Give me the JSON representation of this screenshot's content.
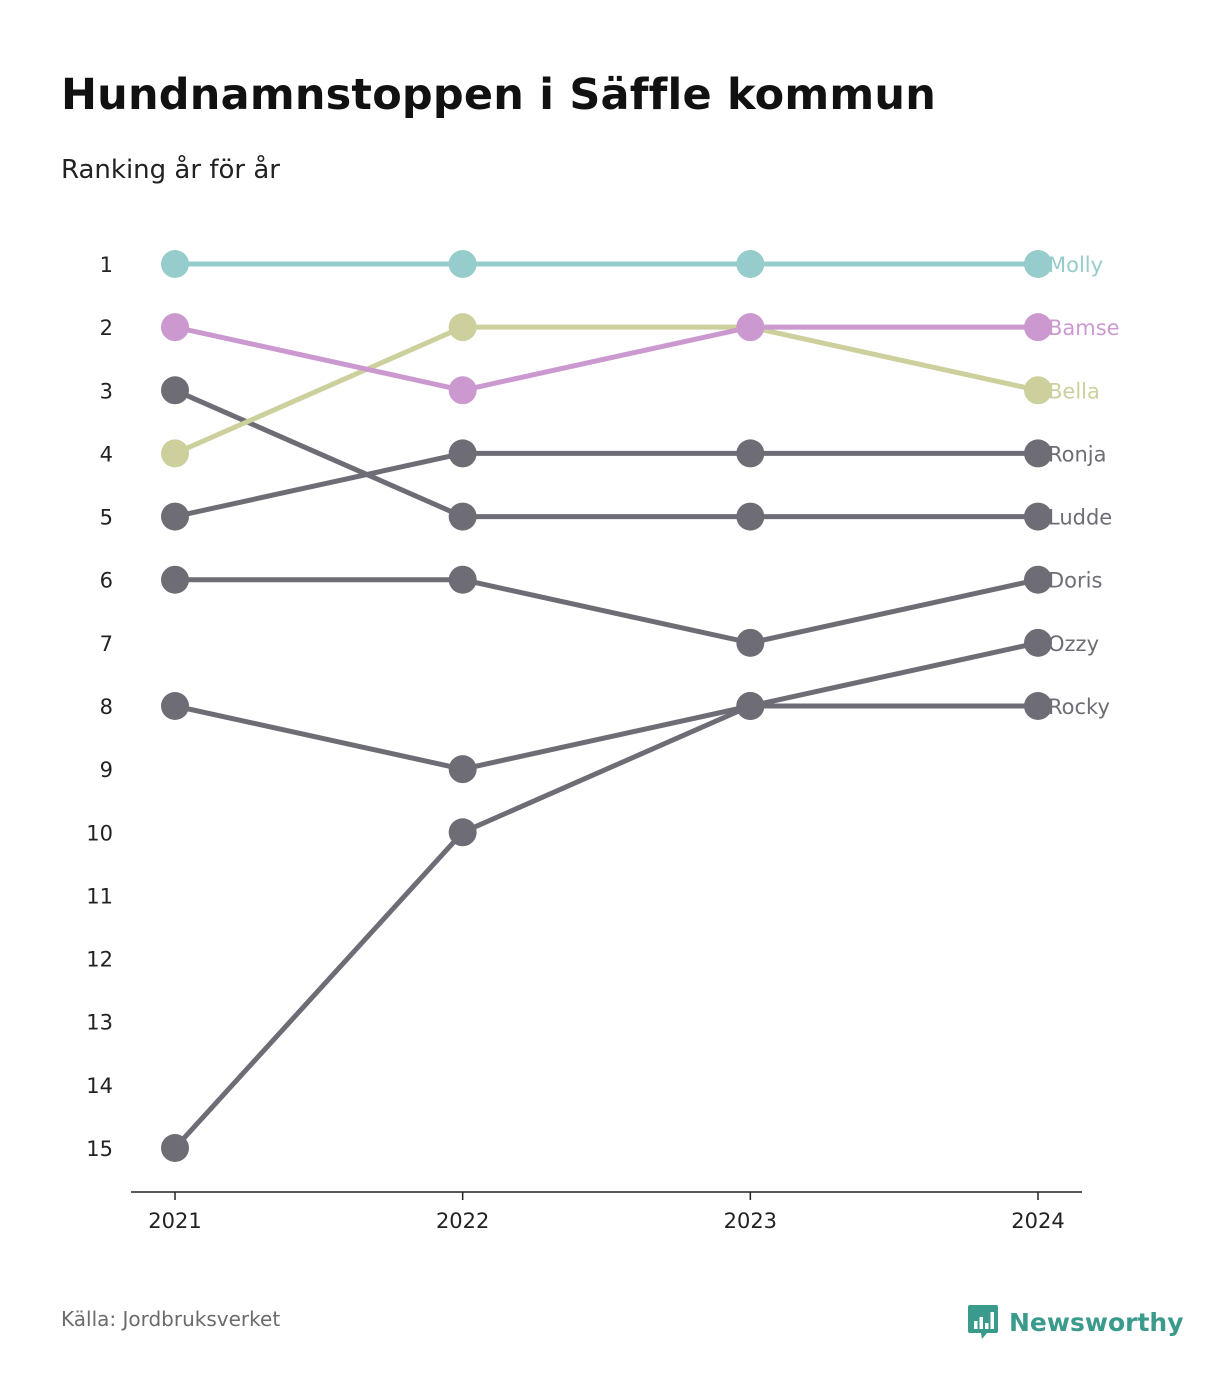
{
  "title": "Hundnamnstoppen i Säffle kommun",
  "subtitle": "Ranking år för år",
  "source": "Källa: Jordbruksverket",
  "brand": {
    "name": "Newsworthy",
    "icon": "newsworthy-logo-icon",
    "color": "#3a9a8c"
  },
  "chart_data": {
    "type": "line",
    "title": "Hundnamnstoppen i Säffle kommun",
    "subtitle": "Ranking år för år",
    "x": [
      "2021",
      "2022",
      "2023",
      "2024"
    ],
    "y_ticks": [
      "1",
      "2",
      "3",
      "4",
      "5",
      "6",
      "7",
      "8",
      "9",
      "10",
      "11",
      "12",
      "13",
      "14",
      "15"
    ],
    "ylim": [
      1,
      15
    ],
    "y_inverted": true,
    "grid": false,
    "legend": "direct labels at right end of lines",
    "series": [
      {
        "name": "Molly",
        "values": [
          1,
          1,
          1,
          1
        ],
        "color": "#96cccb"
      },
      {
        "name": "Bamse",
        "values": [
          2,
          3,
          2,
          2
        ],
        "color": "#cb99d0"
      },
      {
        "name": "Bella",
        "values": [
          4,
          2,
          2,
          3
        ],
        "color": "#cdcf9c"
      },
      {
        "name": "Ronja",
        "values": [
          5,
          4,
          4,
          4
        ],
        "color": "#6e6d75"
      },
      {
        "name": "Ludde",
        "values": [
          3,
          5,
          5,
          5
        ],
        "color": "#6e6d75"
      },
      {
        "name": "Doris",
        "values": [
          6,
          6,
          7,
          6
        ],
        "color": "#6e6d75"
      },
      {
        "name": "Ozzy",
        "values": [
          15,
          10,
          8,
          7
        ],
        "color": "#6e6d75"
      },
      {
        "name": "Rocky",
        "values": [
          8,
          9,
          8,
          8
        ],
        "color": "#6e6d75"
      }
    ]
  }
}
